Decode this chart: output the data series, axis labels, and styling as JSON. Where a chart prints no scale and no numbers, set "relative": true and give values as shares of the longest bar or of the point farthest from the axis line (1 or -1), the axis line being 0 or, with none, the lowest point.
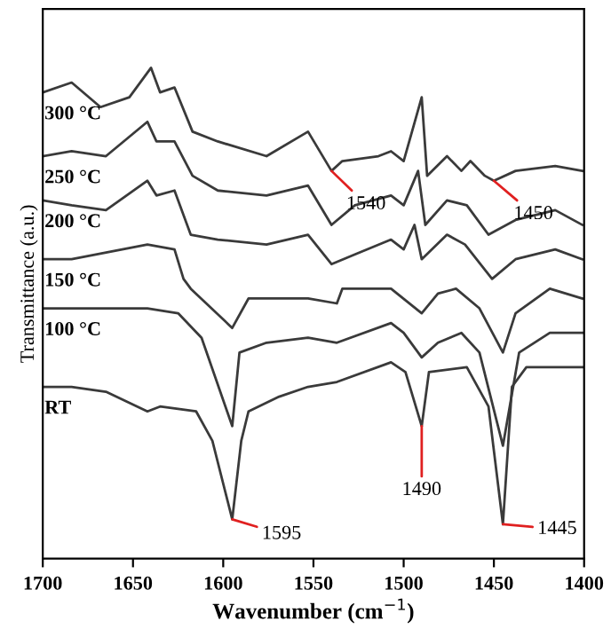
{
  "chart_data": {
    "type": "line",
    "relative": true,
    "xlabel": "Wavenumber (cm$^{−1}$)",
    "ylabel": "Transmittance (a.u.)",
    "xlim": [
      1700,
      1400
    ],
    "xticks": [
      1700,
      1650,
      1600,
      1550,
      1500,
      1450,
      1400
    ],
    "tick_labels": "x",
    "grid": false,
    "legend": false,
    "series": [
      {
        "name": "300 °C",
        "color": "#3a3a3a",
        "x": [
          1700,
          1684,
          1668,
          1652,
          1640,
          1635,
          1627,
          1617,
          1603,
          1576,
          1553,
          1540,
          1534,
          1514,
          1507,
          1500,
          1490,
          1487,
          1476,
          1468,
          1463,
          1455,
          1450,
          1438,
          1416,
          1401
        ],
        "values": [
          0.95,
          0.97,
          0.92,
          0.94,
          1.0,
          0.95,
          0.96,
          0.87,
          0.85,
          0.82,
          0.87,
          0.79,
          0.81,
          0.82,
          0.83,
          0.81,
          0.94,
          0.78,
          0.82,
          0.79,
          0.81,
          0.78,
          0.77,
          0.79,
          0.8,
          0.79
        ]
      },
      {
        "name": "250 °C",
        "color": "#3a3a3a",
        "x": [
          1700,
          1684,
          1665,
          1642,
          1637,
          1627,
          1617,
          1603,
          1576,
          1553,
          1540,
          1527,
          1507,
          1500,
          1492,
          1488,
          1476,
          1465,
          1453,
          1438,
          1416,
          1401
        ],
        "values": [
          0.82,
          0.83,
          0.82,
          0.89,
          0.85,
          0.85,
          0.78,
          0.75,
          0.74,
          0.76,
          0.68,
          0.72,
          0.74,
          0.72,
          0.79,
          0.68,
          0.73,
          0.72,
          0.66,
          0.69,
          0.71,
          0.68
        ]
      },
      {
        "name": "200 °C",
        "color": "#3a3a3a",
        "x": [
          1700,
          1684,
          1665,
          1642,
          1637,
          1627,
          1618,
          1603,
          1576,
          1553,
          1540,
          1527,
          1507,
          1500,
          1494,
          1490,
          1476,
          1466,
          1451,
          1438,
          1416,
          1401
        ],
        "values": [
          0.73,
          0.72,
          0.71,
          0.77,
          0.74,
          0.75,
          0.66,
          0.65,
          0.64,
          0.66,
          0.6,
          0.62,
          0.65,
          0.63,
          0.68,
          0.61,
          0.66,
          0.64,
          0.57,
          0.61,
          0.63,
          0.61
        ]
      },
      {
        "name": "150 °C",
        "color": "#3a3a3a",
        "x": [
          1700,
          1684,
          1642,
          1627,
          1622,
          1618,
          1595,
          1586,
          1553,
          1537,
          1534,
          1507,
          1490,
          1481,
          1471,
          1458,
          1445,
          1438,
          1419,
          1401
        ],
        "values": [
          0.61,
          0.61,
          0.64,
          0.63,
          0.57,
          0.55,
          0.47,
          0.53,
          0.53,
          0.52,
          0.55,
          0.55,
          0.5,
          0.54,
          0.55,
          0.51,
          0.42,
          0.5,
          0.55,
          0.53
        ]
      },
      {
        "name": "100 °C",
        "color": "#3a3a3a",
        "x": [
          1700,
          1684,
          1642,
          1625,
          1612,
          1595,
          1591,
          1576,
          1553,
          1537,
          1507,
          1500,
          1490,
          1481,
          1468,
          1458,
          1445,
          1436,
          1419,
          1401
        ],
        "values": [
          0.51,
          0.51,
          0.51,
          0.5,
          0.45,
          0.27,
          0.42,
          0.44,
          0.45,
          0.44,
          0.48,
          0.46,
          0.41,
          0.44,
          0.46,
          0.42,
          0.23,
          0.42,
          0.46,
          0.46
        ]
      },
      {
        "name": "RT",
        "color": "#3a3a3a",
        "x": [
          1700,
          1684,
          1665,
          1642,
          1635,
          1615,
          1606,
          1595,
          1590,
          1586,
          1569,
          1553,
          1537,
          1507,
          1499,
          1490,
          1486,
          1465,
          1453,
          1445,
          1440,
          1432,
          1419,
          1401
        ],
        "values": [
          0.35,
          0.35,
          0.34,
          0.3,
          0.31,
          0.3,
          0.24,
          0.08,
          0.24,
          0.3,
          0.33,
          0.35,
          0.36,
          0.4,
          0.38,
          0.27,
          0.38,
          0.39,
          0.31,
          0.07,
          0.35,
          0.39,
          0.39,
          0.39
        ]
      }
    ],
    "annotations": [
      {
        "text": "1540",
        "x": 1540,
        "y": 0.79
      },
      {
        "text": "1450",
        "x": 1450,
        "y": 0.77
      },
      {
        "text": "1595",
        "x": 1595,
        "y": 0.08
      },
      {
        "text": "1490",
        "x": 1490,
        "y": 0.27
      },
      {
        "text": "1445",
        "x": 1445,
        "y": 0.07
      }
    ]
  }
}
